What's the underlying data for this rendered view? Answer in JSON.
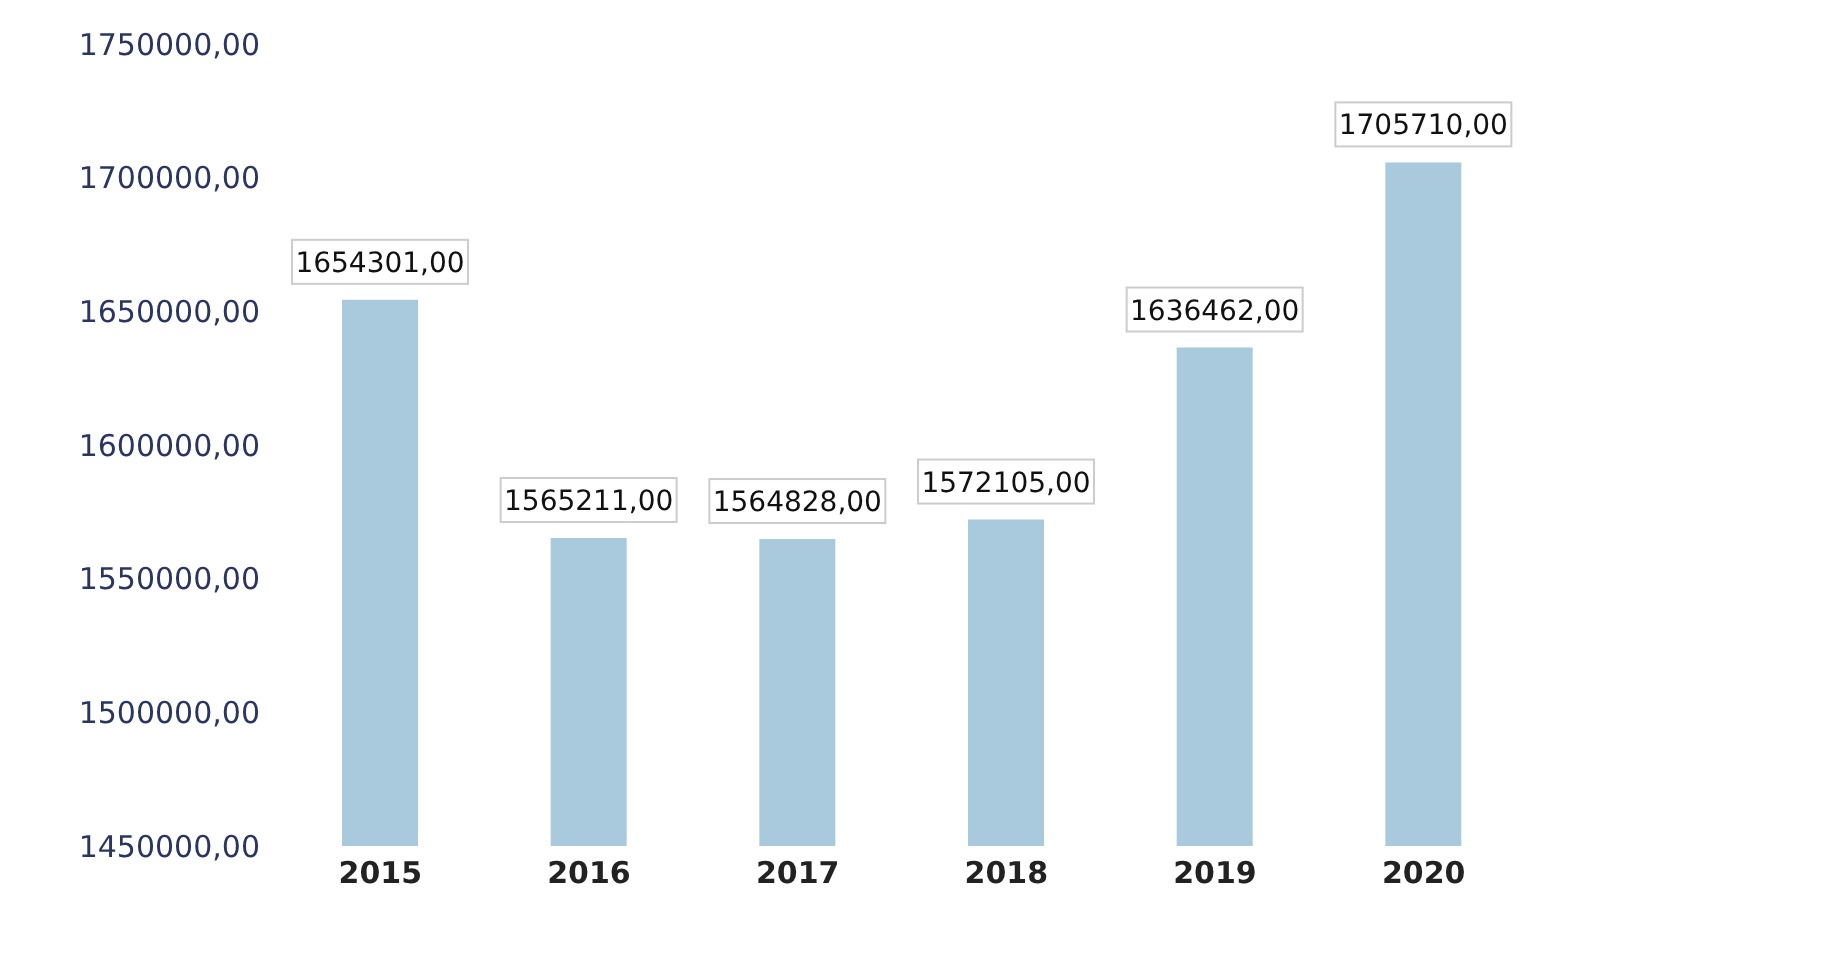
{
  "chart_data": {
    "type": "bar",
    "categories": [
      "2015",
      "2016",
      "2017",
      "2018",
      "2019",
      "2020"
    ],
    "values": [
      1654301,
      1565211,
      1564828,
      1572105,
      1636462,
      1705710
    ],
    "value_labels": [
      "1654301,00",
      "1565211,00",
      "1564828,00",
      "1572105,00",
      "1636462,00",
      "1705710,00"
    ],
    "color": "#a9c9dd",
    "ylim": [
      1450000,
      1750000
    ],
    "yticks": [
      {
        "value": 1450000,
        "label": "1450000,00"
      },
      {
        "value": 1500000,
        "label": "1500000,00"
      },
      {
        "value": 1550000,
        "label": "1550000,00"
      },
      {
        "value": 1600000,
        "label": "1600000,00"
      },
      {
        "value": 1650000,
        "label": "1650000,00"
      },
      {
        "value": 1700000,
        "label": "1700000,00"
      },
      {
        "value": 1750000,
        "label": "1750000,00"
      }
    ],
    "grid": false
  }
}
